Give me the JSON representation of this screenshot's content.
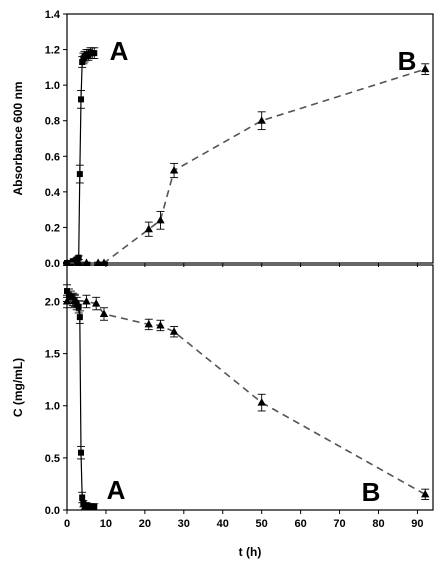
{
  "chart_data": [
    {
      "type": "line",
      "ylabel": "Absorbance 600 nm",
      "xlabel": "",
      "xlim": [
        0,
        94
      ],
      "ylim": [
        0,
        1.4
      ],
      "yticks": [
        "0.0",
        "0.2",
        "0.4",
        "0.6",
        "0.8",
        "1.0",
        "1.2",
        "1.4"
      ],
      "xticks": [],
      "annotations": [
        "A",
        "B"
      ],
      "series": [
        {
          "marker": "square",
          "line_style": "solid",
          "x": [
            0,
            0.5,
            1,
            1.5,
            2,
            2.5,
            3,
            3.3,
            3.6,
            3.9,
            4.2,
            4.5,
            5,
            5.5,
            6,
            6.5,
            7
          ],
          "y": [
            0.0,
            0.0,
            0.0,
            0.01,
            0.01,
            0.02,
            0.03,
            0.5,
            0.92,
            1.13,
            1.15,
            1.16,
            1.17,
            1.17,
            1.18,
            1.18,
            1.18
          ],
          "err": [
            0.005,
            0.005,
            0.005,
            0.005,
            0.005,
            0.01,
            0.01,
            0.05,
            0.05,
            0.03,
            0.03,
            0.03,
            0.03,
            0.03,
            0.03,
            0.03,
            0.03
          ]
        },
        {
          "marker": "triangle",
          "line_style": "dashed",
          "x": [
            0,
            3,
            5,
            8,
            9.5,
            21,
            24,
            27.5,
            50,
            92
          ],
          "y": [
            0.0,
            0.0,
            0.0,
            0.0,
            0.0,
            0.19,
            0.24,
            0.52,
            0.8,
            1.09
          ],
          "err": [
            0.005,
            0.005,
            0.005,
            0.005,
            0.005,
            0.04,
            0.05,
            0.04,
            0.05,
            0.03
          ]
        }
      ]
    },
    {
      "type": "line",
      "ylabel": "C (mg/mL)",
      "xlabel": "t (h)",
      "xlim": [
        0,
        94
      ],
      "ylim": [
        0,
        2.35
      ],
      "yticks": [
        "0.0",
        "0.5",
        "1.0",
        "1.5",
        "2.0"
      ],
      "xticks": [
        "0",
        "10",
        "20",
        "30",
        "40",
        "50",
        "60",
        "70",
        "80",
        "90"
      ],
      "annotations": [
        "A",
        "B"
      ],
      "series": [
        {
          "marker": "square",
          "line_style": "solid",
          "x": [
            0,
            0.5,
            1,
            1.5,
            2,
            2.5,
            3,
            3.3,
            3.6,
            3.9,
            4.2,
            4.6,
            5,
            5.5,
            6,
            6.5,
            7
          ],
          "y": [
            2.1,
            2.06,
            2.04,
            2.02,
            2.0,
            1.98,
            1.95,
            1.85,
            0.55,
            0.12,
            0.06,
            0.04,
            0.04,
            0.03,
            0.03,
            0.03,
            0.03
          ],
          "err": [
            0.06,
            0.06,
            0.06,
            0.06,
            0.06,
            0.06,
            0.06,
            0.06,
            0.06,
            0.05,
            0.03,
            0.03,
            0.03,
            0.03,
            0.03,
            0.03,
            0.03
          ]
        },
        {
          "marker": "triangle",
          "line_style": "dashed",
          "x": [
            0,
            2,
            5,
            7.5,
            9.5,
            21,
            24,
            27.5,
            50,
            92
          ],
          "y": [
            2.0,
            2.01,
            2.0,
            1.98,
            1.88,
            1.78,
            1.77,
            1.71,
            1.03,
            0.15
          ],
          "err": [
            0.06,
            0.06,
            0.06,
            0.06,
            0.06,
            0.05,
            0.05,
            0.05,
            0.08,
            0.05
          ]
        }
      ]
    }
  ]
}
